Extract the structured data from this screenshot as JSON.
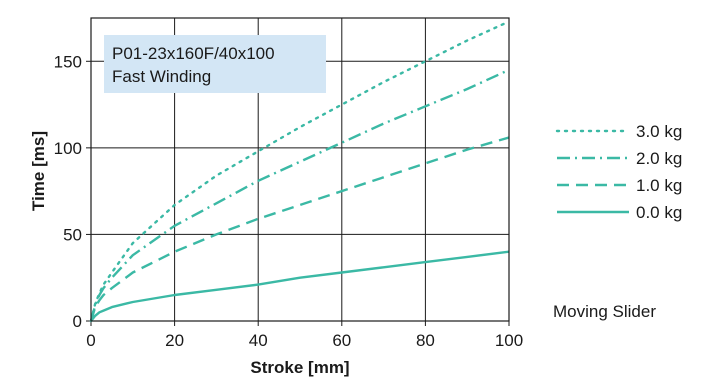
{
  "chart_data": {
    "type": "line",
    "annotation": [
      "P01-23x160F/40x100",
      "Fast Winding"
    ],
    "xlabel": "Stroke [mm]",
    "ylabel": "Time [ms]",
    "xlim": [
      0,
      100
    ],
    "ylim": [
      0,
      175
    ],
    "xticks": [
      0,
      20,
      40,
      60,
      80,
      100
    ],
    "yticks": [
      0,
      50,
      100,
      150
    ],
    "grid": true,
    "legend_position": "right",
    "note": "Moving Slider",
    "colors": {
      "series": "#3bb9a5",
      "grid": "#1a1a1a",
      "annotation_bg": "#d3e6f5"
    },
    "series": [
      {
        "name": "3.0 kg",
        "dash": "dotted",
        "x": [
          0,
          1,
          2,
          3,
          5,
          10,
          20,
          30,
          40,
          50,
          60,
          70,
          80,
          90,
          100
        ],
        "y": [
          0,
          10,
          16,
          21,
          28,
          45,
          67,
          84,
          98,
          112,
          125,
          138,
          150,
          162,
          173
        ]
      },
      {
        "name": "2.0 kg",
        "dash": "dashdot",
        "x": [
          0,
          1,
          2,
          3,
          5,
          10,
          20,
          30,
          40,
          50,
          60,
          70,
          80,
          90,
          100
        ],
        "y": [
          0,
          9,
          15,
          19,
          25,
          38,
          55,
          68,
          81,
          92,
          103,
          114,
          124,
          134,
          145
        ]
      },
      {
        "name": "1.0 kg",
        "dash": "dashed",
        "x": [
          0,
          1,
          2,
          3,
          5,
          10,
          20,
          30,
          40,
          50,
          60,
          70,
          80,
          90,
          100
        ],
        "y": [
          0,
          8,
          12,
          15,
          19,
          28,
          40,
          50,
          59,
          67,
          75,
          83,
          91,
          99,
          106
        ]
      },
      {
        "name": "0.0 kg",
        "dash": "solid",
        "x": [
          0,
          1,
          2,
          3,
          5,
          10,
          20,
          30,
          40,
          50,
          60,
          70,
          80,
          90,
          100
        ],
        "y": [
          0,
          3,
          5,
          6,
          8,
          11,
          15,
          18,
          21,
          25,
          28,
          31,
          34,
          37,
          40
        ]
      }
    ]
  }
}
